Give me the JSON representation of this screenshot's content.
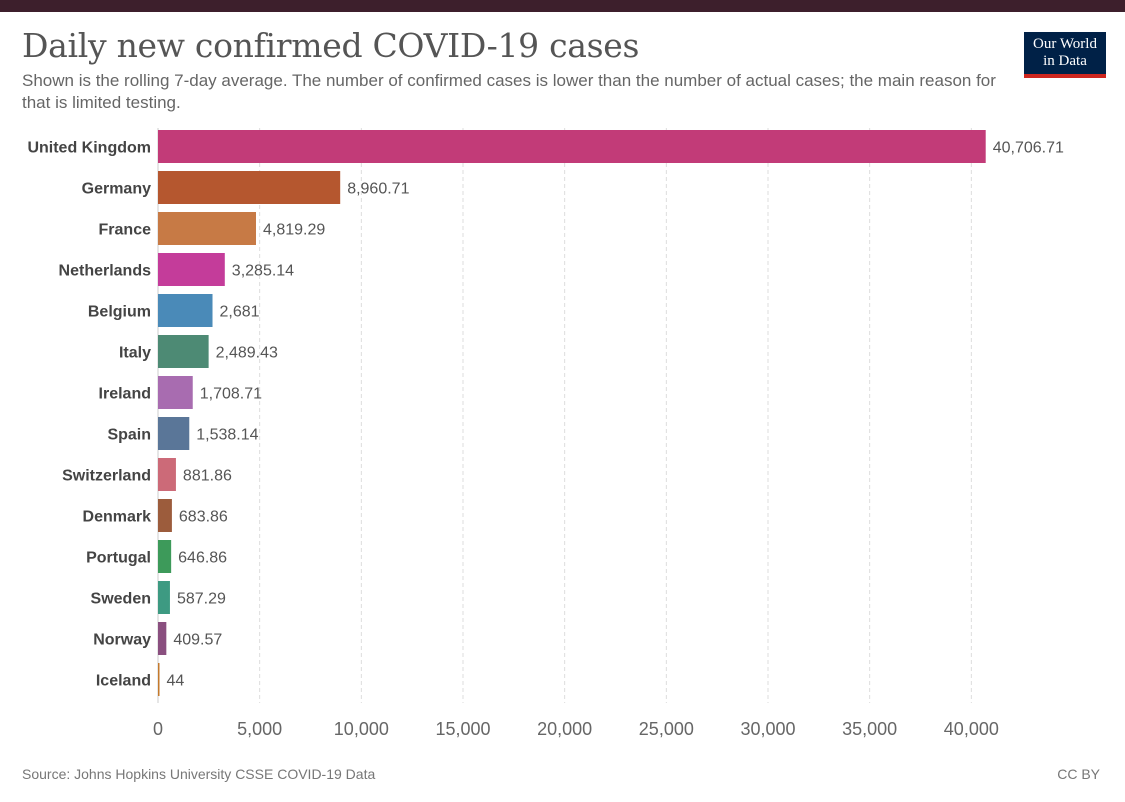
{
  "header": {
    "title": "Daily new confirmed COVID-19 cases",
    "subtitle": "Shown is the rolling 7-day average. The number of confirmed cases is lower than the number of actual cases; the main reason for that is limited testing.",
    "logo_line1": "Our World",
    "logo_line2": "in Data"
  },
  "footer": {
    "source": "Source: Johns Hopkins University CSSE COVID-19 Data",
    "license": "CC BY"
  },
  "colors": {
    "logo_bg": "#002147",
    "logo_accent": "#ce261e",
    "grid": "#dddddd"
  },
  "chart_data": {
    "type": "bar",
    "orientation": "horizontal",
    "title": "Daily new confirmed COVID-19 cases",
    "xlabel": "",
    "ylabel": "",
    "xlim": [
      0,
      42000
    ],
    "xticks": [
      0,
      5000,
      10000,
      15000,
      20000,
      25000,
      30000,
      35000,
      40000
    ],
    "xtick_labels": [
      "0",
      "5,000",
      "10,000",
      "15,000",
      "20,000",
      "25,000",
      "30,000",
      "35,000",
      "40,000"
    ],
    "grid": true,
    "categories": [
      "United Kingdom",
      "Germany",
      "France",
      "Netherlands",
      "Belgium",
      "Italy",
      "Ireland",
      "Spain",
      "Switzerland",
      "Denmark",
      "Portugal",
      "Sweden",
      "Norway",
      "Iceland"
    ],
    "values": [
      40706.71,
      8960.71,
      4819.29,
      3285.14,
      2681,
      2489.43,
      1708.71,
      1538.14,
      881.86,
      683.86,
      646.86,
      587.29,
      409.57,
      44
    ],
    "value_labels": [
      "40,706.71",
      "8,960.71",
      "4,819.29",
      "3,285.14",
      "2,681",
      "2,489.43",
      "1,708.71",
      "1,538.14",
      "881.86",
      "683.86",
      "646.86",
      "587.29",
      "409.57",
      "44"
    ],
    "colors": [
      "#c23b78",
      "#b5572f",
      "#c77a45",
      "#c43c9a",
      "#4a8ab8",
      "#4d8a74",
      "#a86cb0",
      "#5a7698",
      "#cc6a78",
      "#9c5c3c",
      "#3d9a5a",
      "#3d9a82",
      "#8a4f7f",
      "#c47a2c"
    ]
  }
}
